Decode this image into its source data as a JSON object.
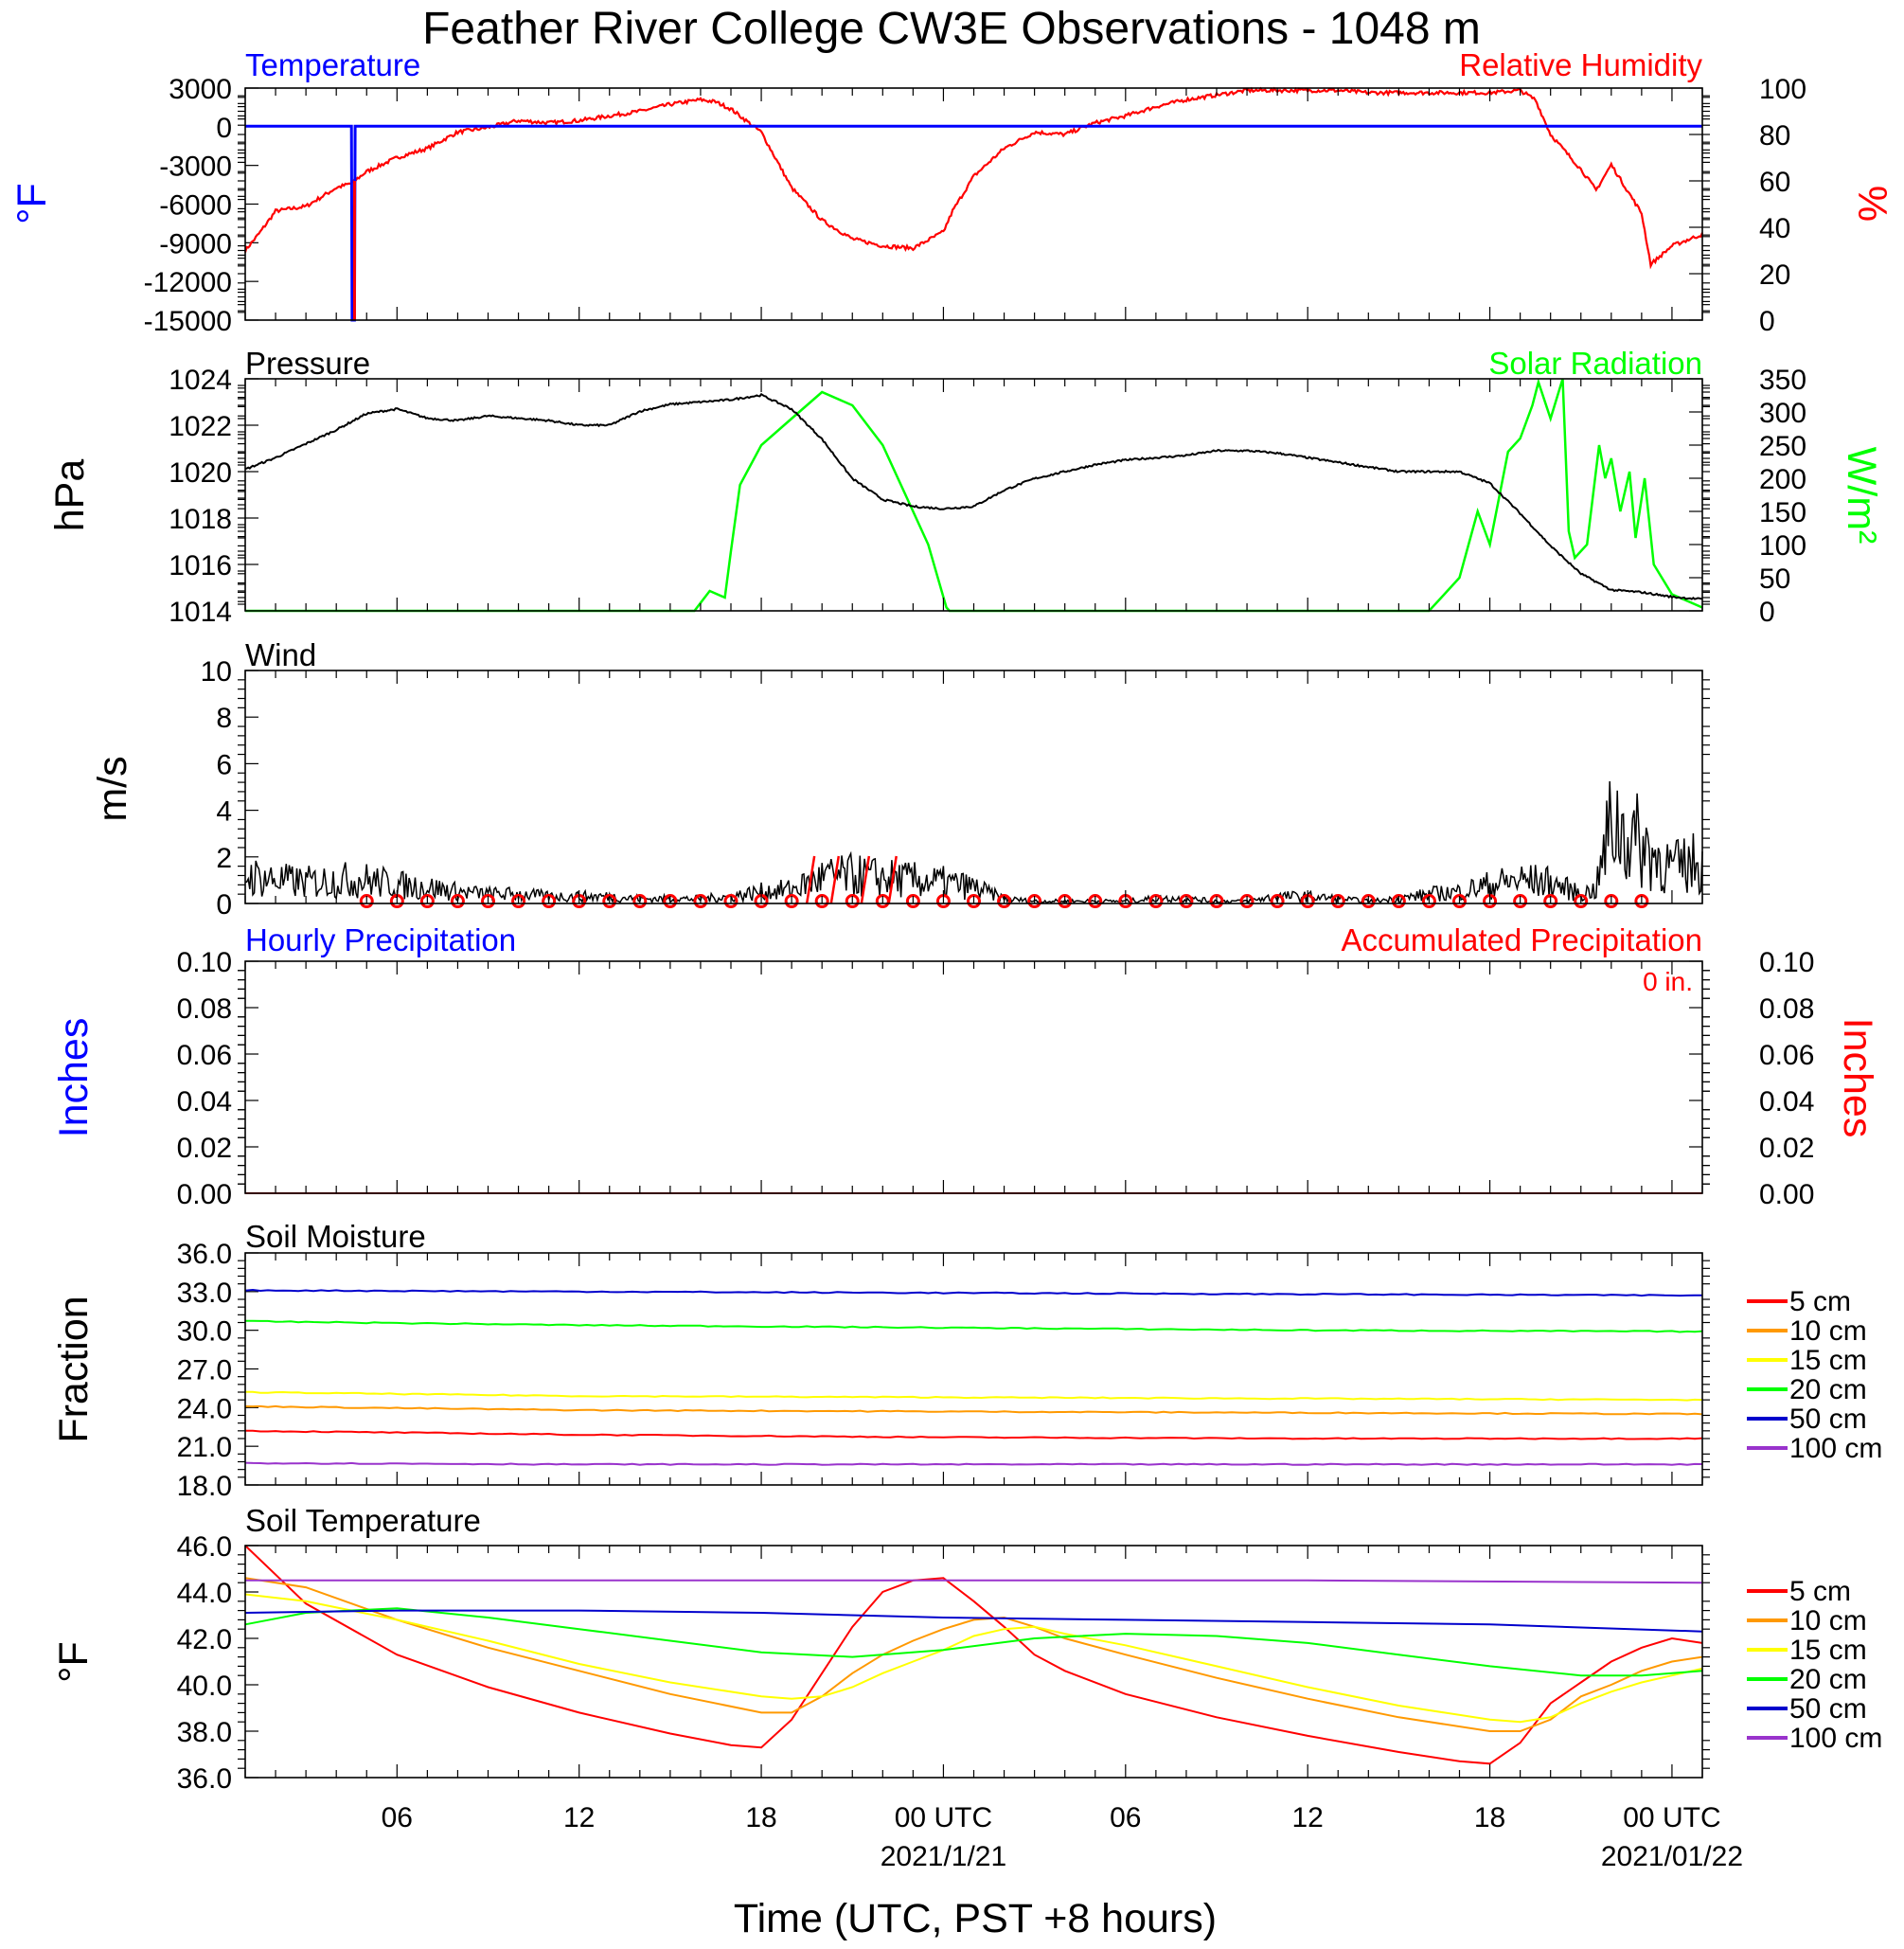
{
  "page": {
    "title": "Feather River College CW3E Observations - 1048 m",
    "xlabel": "Time (UTC, PST +8 hours)"
  },
  "x_axis": {
    "hours": [
      6,
      12,
      18,
      24,
      30,
      36,
      42,
      48
    ],
    "tick_labels": [
      "06",
      "12",
      "18",
      "00 UTC",
      "06",
      "12",
      "18",
      "00 UTC"
    ],
    "date_labels": [
      {
        "hour": 24,
        "text": "2021/1/21"
      },
      {
        "hour": 48,
        "text": "2021/01/22"
      }
    ]
  },
  "colors": {
    "blue": "#0000ff",
    "red": "#ff0000",
    "green": "#00ff00",
    "orange": "#ff9900",
    "yellow": "#ffff00",
    "darkblue": "#0000cc",
    "purple": "#9933cc"
  },
  "panels": {
    "temp_rh": {
      "left_title": "Temperature",
      "right_title": "Relative Humidity",
      "left_ylabel": "°F",
      "right_ylabel": "%",
      "left_ticks": [
        "3000",
        "0",
        "-3000",
        "-6000",
        "-9000",
        "-12000",
        "-15000"
      ],
      "right_ticks": [
        "100",
        "80",
        "60",
        "40",
        "20",
        "0"
      ]
    },
    "pressure_solar": {
      "left_title": "Pressure",
      "right_title": "Solar Radiation",
      "left_ylabel": "hPa",
      "right_ylabel": "W/m²",
      "left_ticks": [
        "1024",
        "1022",
        "1020",
        "1018",
        "1016",
        "1014"
      ],
      "right_ticks": [
        "350",
        "300",
        "250",
        "200",
        "150",
        "100",
        "50",
        "0"
      ]
    },
    "wind": {
      "title": "Wind",
      "ylabel": "m/s",
      "ticks": [
        "10",
        "8",
        "6",
        "4",
        "2",
        "0"
      ]
    },
    "precip": {
      "left_title": "Hourly Precipitation",
      "right_title": "Accumulated Precipitation",
      "annotation": "0 in.",
      "left_ylabel": "Inches",
      "right_ylabel": "Inches",
      "ticks": [
        "0.10",
        "0.08",
        "0.06",
        "0.04",
        "0.02",
        "0.00"
      ]
    },
    "soil_moisture": {
      "title": "Soil Moisture",
      "ylabel": "Fraction",
      "ticks": [
        "36.0",
        "33.0",
        "30.0",
        "27.0",
        "24.0",
        "21.0",
        "18.0"
      ],
      "legend": [
        "5 cm",
        "10 cm",
        "15 cm",
        "20 cm",
        "50 cm",
        "100 cm"
      ]
    },
    "soil_temp": {
      "title": "Soil Temperature",
      "ylabel": "°F",
      "ticks": [
        "46.0",
        "44.0",
        "42.0",
        "40.0",
        "38.0",
        "36.0"
      ],
      "legend": [
        "5 cm",
        "10 cm",
        "15 cm",
        "20 cm",
        "50 cm",
        "100 cm"
      ]
    }
  },
  "chart_data": [
    {
      "type": "line",
      "title": "Temperature / Relative Humidity",
      "xlabel": "Time (UTC, PST +8 hours)",
      "x_hours_range": [
        1,
        49
      ],
      "series": [
        {
          "name": "Temperature",
          "axis": "left",
          "ylim": [
            -15000,
            3000
          ],
          "x": [
            1,
            4.5,
            4.52,
            4.6,
            4.62,
            49
          ],
          "y": [
            40,
            40,
            -15000,
            -15000,
            40,
            42
          ]
        },
        {
          "name": "Relative Humidity",
          "axis": "right",
          "ylim": [
            0,
            100
          ],
          "x": [
            1,
            1.5,
            2,
            3,
            4,
            4.5,
            5,
            6,
            7,
            8,
            9,
            10,
            11,
            12,
            13,
            14,
            15,
            16,
            16.5,
            17,
            18,
            19,
            20,
            21,
            22,
            23,
            24,
            24.3,
            25,
            26,
            27,
            28,
            29,
            30,
            31,
            32,
            33,
            34,
            35,
            36,
            37,
            38,
            39,
            40,
            41,
            42,
            43,
            43.5,
            44,
            45,
            45.5,
            46,
            47,
            47.3,
            48,
            49
          ],
          "y": [
            30,
            38,
            47,
            49,
            57,
            59,
            64,
            70,
            74,
            81,
            83,
            86,
            85,
            86,
            88,
            90,
            93,
            95,
            94,
            91,
            81,
            57,
            43,
            35,
            32,
            31,
            38,
            47,
            62,
            74,
            81,
            80,
            85,
            88,
            92,
            95,
            97,
            99,
            99,
            99,
            99,
            98,
            98,
            98,
            98,
            98,
            99,
            95,
            80,
            65,
            56,
            67,
            46,
            24,
            32,
            37
          ]
        }
      ]
    },
    {
      "type": "line",
      "title": "Pressure / Solar Radiation",
      "x_hours_range": [
        1,
        49
      ],
      "series": [
        {
          "name": "Pressure",
          "axis": "left",
          "ylim": [
            1014,
            1024
          ],
          "x": [
            1,
            2,
            3,
            4,
            5,
            6,
            7,
            8,
            9,
            10,
            11,
            12,
            13,
            14,
            15,
            16,
            17,
            18,
            19,
            20,
            21,
            22,
            23,
            24,
            25,
            26,
            27,
            28,
            29,
            30,
            31,
            32,
            33,
            34,
            35,
            36,
            37,
            38,
            39,
            40,
            41,
            42,
            43,
            44,
            45,
            46,
            47,
            48,
            49
          ],
          "y": [
            1020.1,
            1020.6,
            1021.2,
            1021.8,
            1022.5,
            1022.7,
            1022.3,
            1022.2,
            1022.4,
            1022.3,
            1022.2,
            1022.0,
            1022.0,
            1022.6,
            1022.9,
            1023.0,
            1023.1,
            1023.3,
            1022.7,
            1021.4,
            1019.7,
            1018.8,
            1018.5,
            1018.4,
            1018.5,
            1019.2,
            1019.7,
            1020.0,
            1020.3,
            1020.5,
            1020.6,
            1020.7,
            1020.9,
            1020.9,
            1020.8,
            1020.6,
            1020.4,
            1020.2,
            1020.0,
            1020.0,
            1020.0,
            1019.5,
            1018.2,
            1016.8,
            1015.6,
            1014.9,
            1014.8,
            1014.6,
            1014.5
          ]
        },
        {
          "name": "Solar Radiation",
          "axis": "right",
          "ylim": [
            0,
            350
          ],
          "x": [
            1,
            15.8,
            16.3,
            16.8,
            17.0,
            17.3,
            18,
            19,
            20,
            21,
            22,
            23,
            23.5,
            24.1,
            24.2,
            40.0,
            40.4,
            41.0,
            41.6,
            42.0,
            42.6,
            43.0,
            43.4,
            43.6,
            44.0,
            44.4,
            44.6,
            44.8,
            45.2,
            45.6,
            45.8,
            46.0,
            46.3,
            46.6,
            46.8,
            47.1,
            47.4,
            48.0,
            49
          ],
          "y": [
            0,
            0,
            30,
            20,
            90,
            190,
            250,
            290,
            330,
            310,
            250,
            150,
            100,
            5,
            0,
            0,
            20,
            50,
            150,
            100,
            240,
            260,
            310,
            345,
            290,
            350,
            120,
            80,
            100,
            250,
            200,
            230,
            150,
            210,
            110,
            200,
            70,
            25,
            5
          ]
        }
      ]
    },
    {
      "type": "line",
      "title": "Wind",
      "ylabel": "m/s",
      "ylim": [
        0,
        10
      ],
      "x_hours_range": [
        1,
        49
      ],
      "series": [
        {
          "name": "Wind speed",
          "x": [
            1,
            2,
            3,
            4,
            5,
            6,
            7,
            8,
            9,
            10,
            11,
            12,
            13,
            14,
            15,
            16,
            17,
            18,
            19,
            20,
            21,
            22,
            23,
            24,
            25,
            26,
            27,
            28,
            29,
            30,
            31,
            32,
            33,
            34,
            35,
            36,
            37,
            38,
            39,
            40,
            41,
            42,
            43,
            44,
            45,
            45.5,
            46,
            46.5,
            47,
            47.5,
            48,
            49
          ],
          "y": [
            1.2,
            1.0,
            0.9,
            1.0,
            1.0,
            0.8,
            0.7,
            0.5,
            0.4,
            0.4,
            0.3,
            0.3,
            0.3,
            0.2,
            0.2,
            0.2,
            0.3,
            0.5,
            0.6,
            1.1,
            1.2,
            1.1,
            1.0,
            0.9,
            0.7,
            0.2,
            0.1,
            0.1,
            0.1,
            0.1,
            0.2,
            0.2,
            0.1,
            0.1,
            0.3,
            0.3,
            0.2,
            0.1,
            0.2,
            0.4,
            0.5,
            0.8,
            1.0,
            0.9,
            0.4,
            0.6,
            3.5,
            3.0,
            2.5,
            2.0,
            1.5,
            1.8
          ]
        }
      ]
    },
    {
      "type": "line",
      "title": "Hourly Precipitation / Accumulated Precipitation",
      "ylim": [
        0,
        0.1
      ],
      "annotations": [
        "0 in."
      ],
      "series": [
        {
          "name": "Hourly Precipitation",
          "x": [
            1,
            49
          ],
          "y": [
            0,
            0
          ]
        },
        {
          "name": "Accumulated Precipitation",
          "x": [
            1,
            49
          ],
          "y": [
            0,
            0
          ]
        }
      ]
    },
    {
      "type": "line",
      "title": "Soil Moisture",
      "ylabel": "Fraction",
      "ylim": [
        18,
        36
      ],
      "series": [
        {
          "name": "5 cm",
          "x": [
            1,
            12,
            24,
            36,
            49
          ],
          "y": [
            22.2,
            21.9,
            21.7,
            21.6,
            21.6
          ]
        },
        {
          "name": "10 cm",
          "x": [
            1,
            12,
            24,
            36,
            49
          ],
          "y": [
            24.1,
            23.8,
            23.7,
            23.6,
            23.5
          ]
        },
        {
          "name": "15 cm",
          "x": [
            1,
            12,
            24,
            36,
            49
          ],
          "y": [
            25.2,
            24.9,
            24.8,
            24.7,
            24.6
          ]
        },
        {
          "name": "20 cm",
          "x": [
            1,
            12,
            24,
            36,
            49
          ],
          "y": [
            30.7,
            30.4,
            30.2,
            30.0,
            29.9
          ]
        },
        {
          "name": "50 cm",
          "x": [
            1,
            12,
            24,
            36,
            49
          ],
          "y": [
            33.1,
            33.0,
            32.9,
            32.8,
            32.7
          ]
        },
        {
          "name": "100 cm",
          "x": [
            1,
            12,
            24,
            36,
            49
          ],
          "y": [
            19.7,
            19.6,
            19.6,
            19.6,
            19.6
          ]
        }
      ]
    },
    {
      "type": "line",
      "title": "Soil Temperature",
      "ylabel": "°F",
      "ylim": [
        36,
        46
      ],
      "series": [
        {
          "name": "5 cm",
          "x": [
            1,
            3,
            6,
            9,
            12,
            15,
            17,
            18,
            19,
            20,
            21,
            22,
            23,
            24,
            25,
            26,
            27,
            28,
            30,
            33,
            36,
            39,
            41,
            42,
            43,
            44,
            45,
            46,
            47,
            48,
            49
          ],
          "y": [
            46.0,
            43.5,
            41.3,
            39.9,
            38.8,
            37.9,
            37.4,
            37.3,
            38.5,
            40.5,
            42.5,
            44.0,
            44.5,
            44.6,
            43.6,
            42.5,
            41.3,
            40.6,
            39.6,
            38.6,
            37.8,
            37.1,
            36.7,
            36.6,
            37.5,
            39.2,
            40.1,
            41.0,
            41.6,
            42.0,
            41.8
          ]
        },
        {
          "name": "10 cm",
          "x": [
            1,
            3,
            6,
            9,
            12,
            15,
            18,
            19,
            20,
            21,
            22,
            23,
            24,
            25,
            26,
            27,
            28,
            30,
            33,
            36,
            39,
            42,
            43,
            44,
            45,
            46,
            47,
            48,
            49
          ],
          "y": [
            44.6,
            44.2,
            42.8,
            41.6,
            40.6,
            39.6,
            38.8,
            38.8,
            39.5,
            40.5,
            41.3,
            41.9,
            42.4,
            42.8,
            42.9,
            42.5,
            42.0,
            41.3,
            40.3,
            39.4,
            38.6,
            38.0,
            38.0,
            38.5,
            39.5,
            40.0,
            40.6,
            41.0,
            41.2
          ]
        },
        {
          "name": "15 cm",
          "x": [
            1,
            3,
            6,
            9,
            12,
            15,
            18,
            19,
            20,
            21,
            22,
            23,
            24,
            25,
            26,
            27,
            28,
            30,
            33,
            36,
            39,
            42,
            43,
            44,
            45,
            46,
            47,
            48,
            49
          ],
          "y": [
            43.9,
            43.6,
            42.8,
            41.9,
            40.9,
            40.1,
            39.5,
            39.4,
            39.5,
            39.9,
            40.5,
            41.0,
            41.5,
            42.1,
            42.4,
            42.5,
            42.2,
            41.7,
            40.8,
            39.9,
            39.1,
            38.5,
            38.4,
            38.6,
            39.2,
            39.7,
            40.1,
            40.4,
            40.7
          ]
        },
        {
          "name": "20 cm",
          "x": [
            1,
            3,
            6,
            9,
            12,
            15,
            18,
            21,
            24,
            27,
            30,
            33,
            36,
            39,
            42,
            45,
            47,
            49
          ],
          "y": [
            42.6,
            43.1,
            43.3,
            42.9,
            42.4,
            41.9,
            41.4,
            41.2,
            41.5,
            42.0,
            42.2,
            42.1,
            41.8,
            41.3,
            40.8,
            40.4,
            40.4,
            40.6
          ]
        },
        {
          "name": "50 cm",
          "x": [
            1,
            6,
            12,
            18,
            24,
            30,
            36,
            42,
            49
          ],
          "y": [
            43.1,
            43.2,
            43.2,
            43.1,
            42.9,
            42.8,
            42.7,
            42.6,
            42.3
          ]
        },
        {
          "name": "100 cm",
          "x": [
            1,
            12,
            24,
            36,
            49
          ],
          "y": [
            44.5,
            44.5,
            44.5,
            44.5,
            44.4
          ]
        }
      ]
    }
  ]
}
